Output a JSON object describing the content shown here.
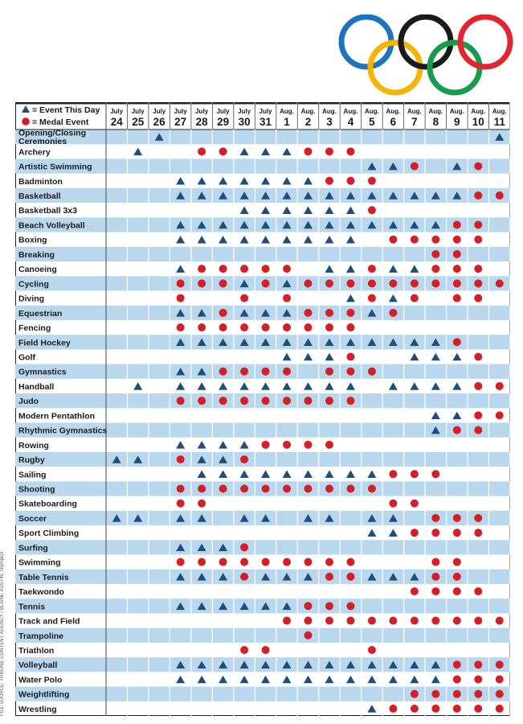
{
  "legend": {
    "event_label": "= Event This Day",
    "medal_label": "= Medal Event"
  },
  "colors": {
    "event": "#1f4e79",
    "medal": "#d41f26",
    "band": "#b9d8ee",
    "rings": [
      "#1e73be",
      "#f4b400",
      "#1a1a1a",
      "#1a9b4b",
      "#e0262e"
    ]
  },
  "credit": "FILE SOURCE: TRIBUNE CONTENT AGENCY / BLAINE AUSTIN, Olympics",
  "days": [
    {
      "month": "July",
      "day": "24"
    },
    {
      "month": "July",
      "day": "25"
    },
    {
      "month": "July",
      "day": "26"
    },
    {
      "month": "July",
      "day": "27"
    },
    {
      "month": "July",
      "day": "28"
    },
    {
      "month": "July",
      "day": "29"
    },
    {
      "month": "July",
      "day": "30"
    },
    {
      "month": "July",
      "day": "31"
    },
    {
      "month": "Aug.",
      "day": "1"
    },
    {
      "month": "Aug.",
      "day": "2"
    },
    {
      "month": "Aug.",
      "day": "3"
    },
    {
      "month": "Aug.",
      "day": "4"
    },
    {
      "month": "Aug.",
      "day": "5"
    },
    {
      "month": "Aug.",
      "day": "6"
    },
    {
      "month": "Aug.",
      "day": "7"
    },
    {
      "month": "Aug.",
      "day": "8"
    },
    {
      "month": "Aug.",
      "day": "9"
    },
    {
      "month": "Aug.",
      "day": "10"
    },
    {
      "month": "Aug.",
      "day": "11"
    }
  ],
  "sports": [
    {
      "name": "Opening/Closing Ceremonies",
      "cells": "--T---------------T"
    },
    {
      "name": "Archery",
      "cells": "-T--MMTTTMMM-------"
    },
    {
      "name": "Artistic Swimming",
      "cells": "------------TTM-TM-"
    },
    {
      "name": "Badminton",
      "cells": "---TTTTTTTMMM------"
    },
    {
      "name": "Basketball",
      "cells": "---TTTTTTTTTTTTTTMM"
    },
    {
      "name": "Basketball 3x3",
      "cells": "------TTTTTTM------"
    },
    {
      "name": "Beach Volleyball",
      "cells": "---TTTTTTTTTTTTTMM-"
    },
    {
      "name": "Boxing",
      "cells": "---TTTTTTTTT-MMMMM-"
    },
    {
      "name": "Breaking",
      "cells": "---------------MM--"
    },
    {
      "name": "Canoeing",
      "cells": "---TMMMMM-TTMTTMMM-"
    },
    {
      "name": "Cycling",
      "cells": "---MMMTMTMMMMMMMMMM"
    },
    {
      "name": "Diving",
      "cells": "---M--M-M--TMTM-MM-"
    },
    {
      "name": "Equestrian",
      "cells": "---TTMTTTMMMTM-----"
    },
    {
      "name": "Fencing",
      "cells": "---MMMMMMMMM-------"
    },
    {
      "name": "Field Hockey",
      "cells": "---TTTTTTTTTTTTTM--"
    },
    {
      "name": "Golf",
      "cells": "--------TTTM--TTTM-"
    },
    {
      "name": "Gymnastics",
      "cells": "---TTMMMM-MMM------"
    },
    {
      "name": "Handball",
      "cells": "-T-TTTTTTTTT-TTTTMM"
    },
    {
      "name": "Judo",
      "cells": "---MMMMMMMMM-------"
    },
    {
      "name": "Modern Pentathlon",
      "cells": "---------------TTMM"
    },
    {
      "name": "Rhythmic Gymnastics",
      "cells": "---------------TMM-"
    },
    {
      "name": "Rowing",
      "cells": "---TTTTMMMM--------"
    },
    {
      "name": "Rugby",
      "cells": "TT-MTTM------------"
    },
    {
      "name": "Sailing",
      "cells": "----TTTTTTTTTMMM---"
    },
    {
      "name": "Shooting",
      "cells": "---MMMMMMMMMM------"
    },
    {
      "name": "Skateboarding",
      "cells": "---MM--------MM----"
    },
    {
      "name": "Soccer",
      "cells": "TT-TT-TT-TT-TT-MMM-"
    },
    {
      "name": "Sport Climbing",
      "cells": "------------TTMMMM-"
    },
    {
      "name": "Surfing",
      "cells": "---TTTM------------"
    },
    {
      "name": "Swimming",
      "cells": "---MMMMMMMMM---MM--"
    },
    {
      "name": "Table Tennis",
      "cells": "---TTTMTTTMMTTTMM--"
    },
    {
      "name": "Taekwondo",
      "cells": "--------------MMMM-"
    },
    {
      "name": "Tennis",
      "cells": "---TTTTTTMMM-------"
    },
    {
      "name": "Track and Field",
      "cells": "--------MMMMMMMMMMM"
    },
    {
      "name": "Trampoline",
      "cells": "---------M---------"
    },
    {
      "name": "Triathlon",
      "cells": "------MM----M------"
    },
    {
      "name": "Volleyball",
      "cells": "---TTTTTTTTTTTTTMMM"
    },
    {
      "name": "Water Polo",
      "cells": "---TTTTTTTTTTTTTMMM"
    },
    {
      "name": "Weightlifting",
      "cells": "--------------MMMMM"
    },
    {
      "name": "Wrestling",
      "cells": "------------TMMMMMM"
    }
  ]
}
